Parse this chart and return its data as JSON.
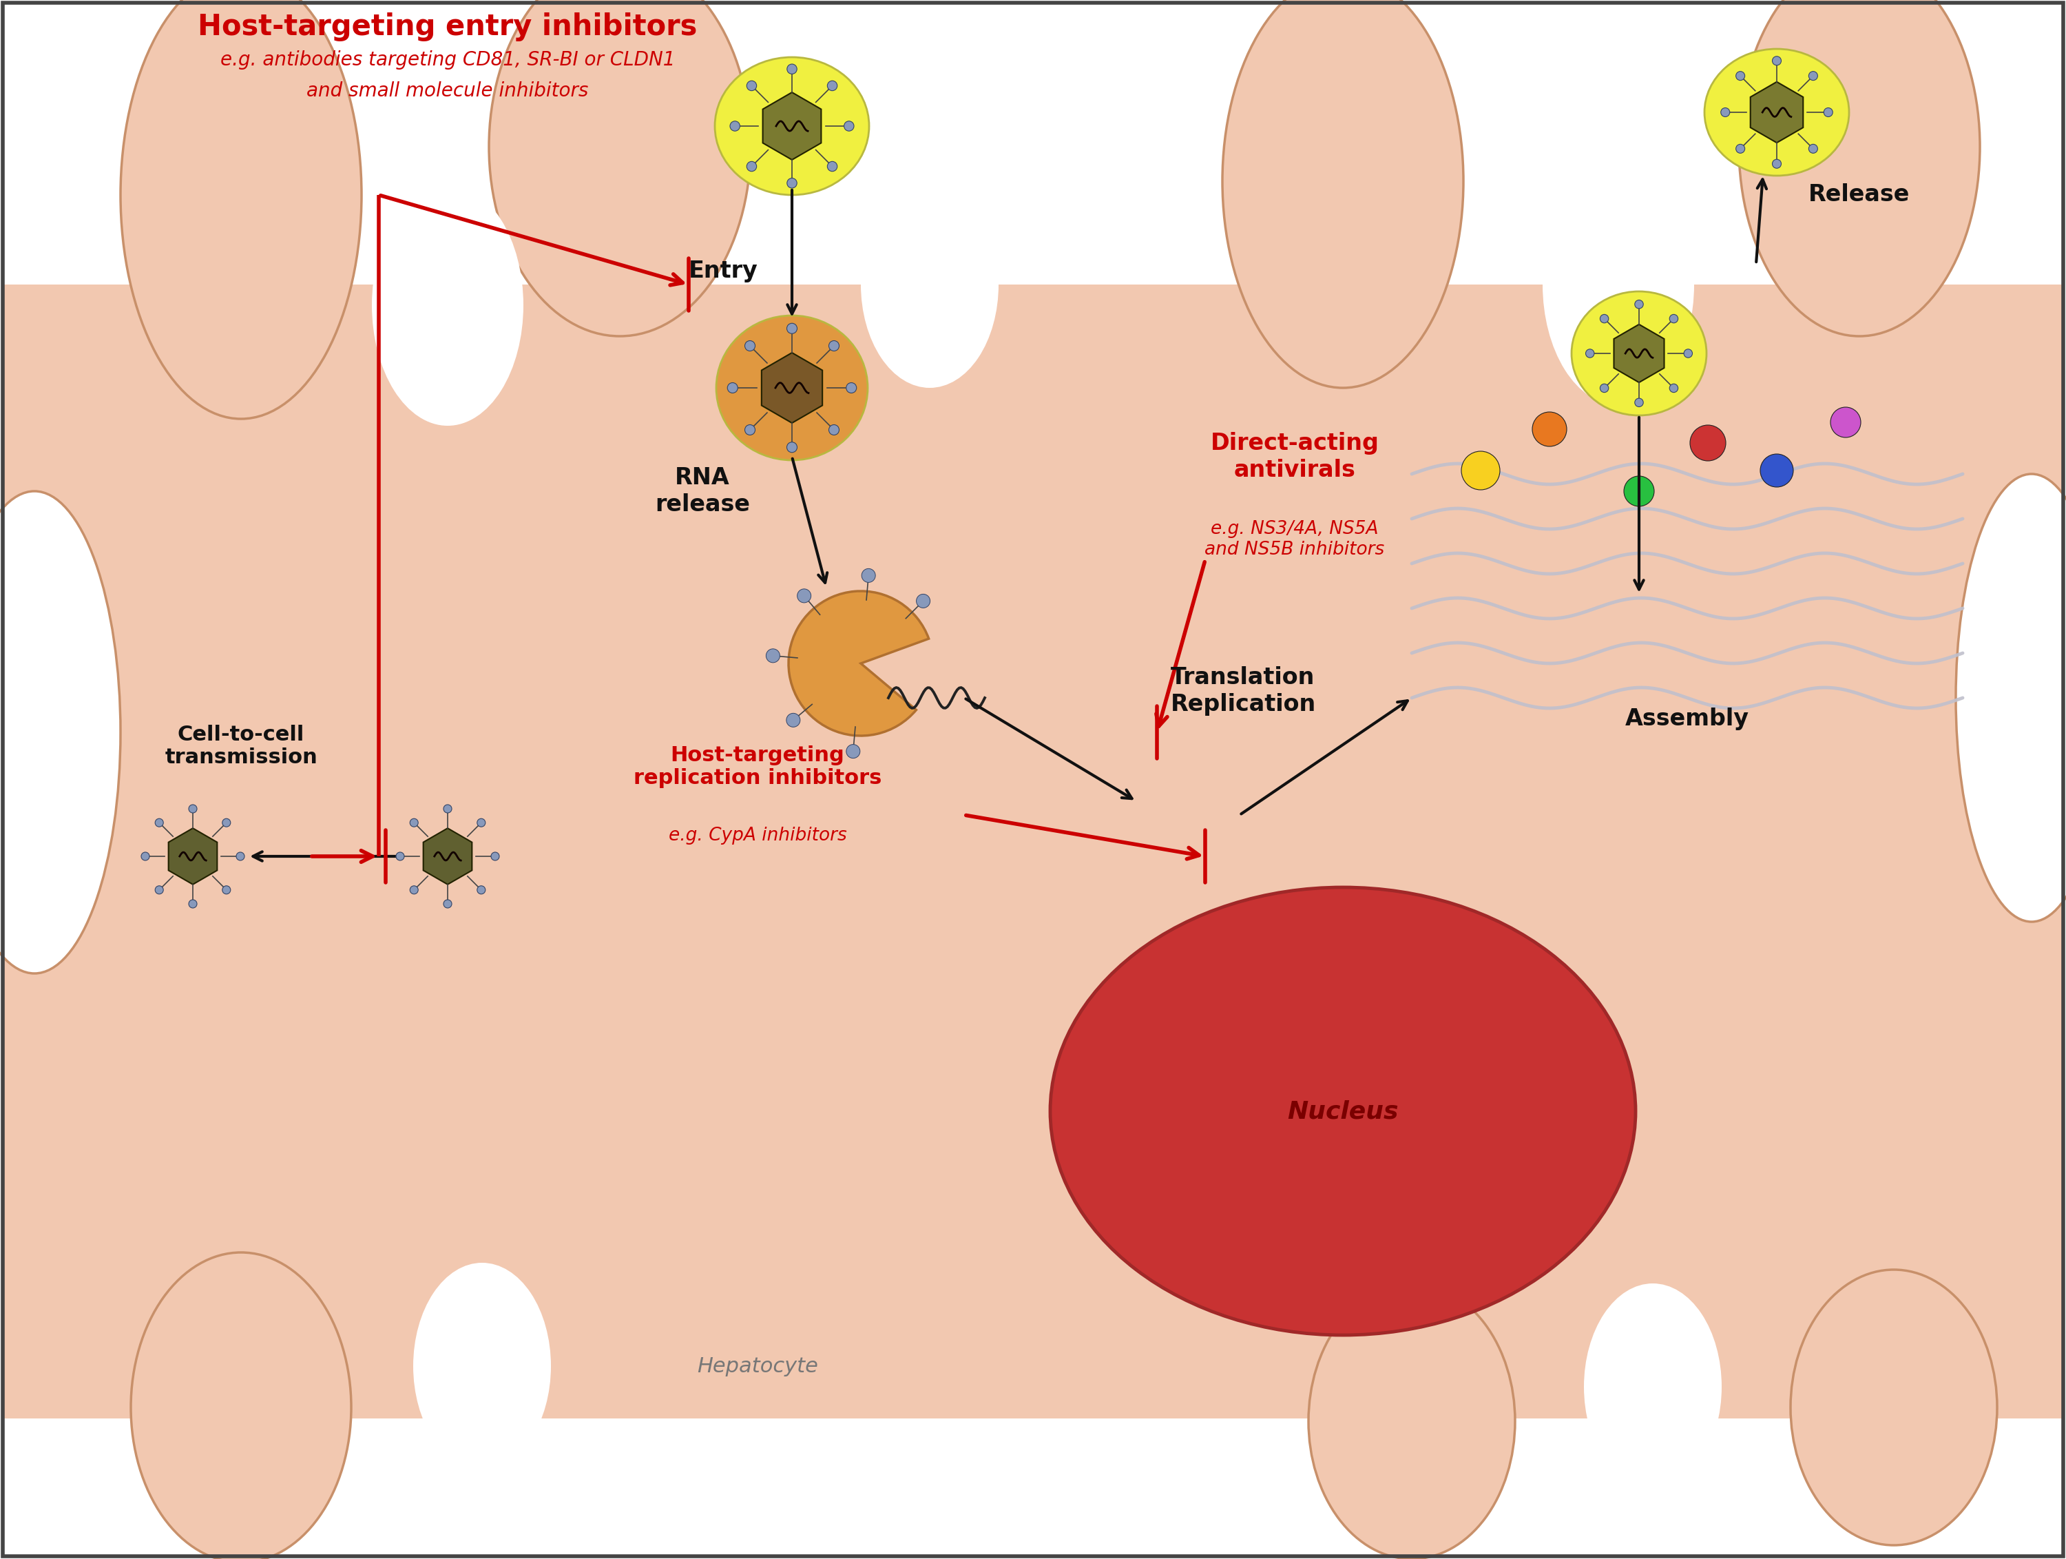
{
  "bg_color": "#ffffff",
  "cell_fill": "#f2c8b0",
  "cell_edge": "#c8906a",
  "white_fill": "#ffffff",
  "nucleus_fill": "#c83232",
  "nucleus_edge": "#a02828",
  "nucleus_text": "#7a0000",
  "er_color": "#c0c0cc",
  "red": "#cc0000",
  "black": "#111111",
  "virus_body_green": "#7a7a30",
  "virus_body_brown": "#7a5828",
  "virus_env_yellow": "#f0f040",
  "virus_env_orange": "#e09840",
  "virus_spike_ball": "#8899bb",
  "virus_spike_stem": "#444444",
  "title_entry": "Host-targeting entry inhibitors",
  "sub_entry_1": "e.g. antibodies targeting CD81, SR-BI or CLDN1",
  "sub_entry_2": "and small molecule inhibitors",
  "lbl_entry": "Entry",
  "lbl_rna": "RNA\nrelease",
  "lbl_trans": "Translation\nReplication",
  "lbl_assembly": "Assembly",
  "lbl_release": "Release",
  "lbl_c2c": "Cell-to-cell\ntransmission",
  "lbl_hepato": "Hepatocyte",
  "lbl_nucleus": "Nucleus",
  "title_daa": "Direct-acting\nantivirals",
  "sub_daa": "e.g. NS3/4A, NS5A\nand NS5B inhibitors",
  "title_rep": "Host-targeting\nreplication inhibitors",
  "sub_rep": "e.g. CypA inhibitors"
}
